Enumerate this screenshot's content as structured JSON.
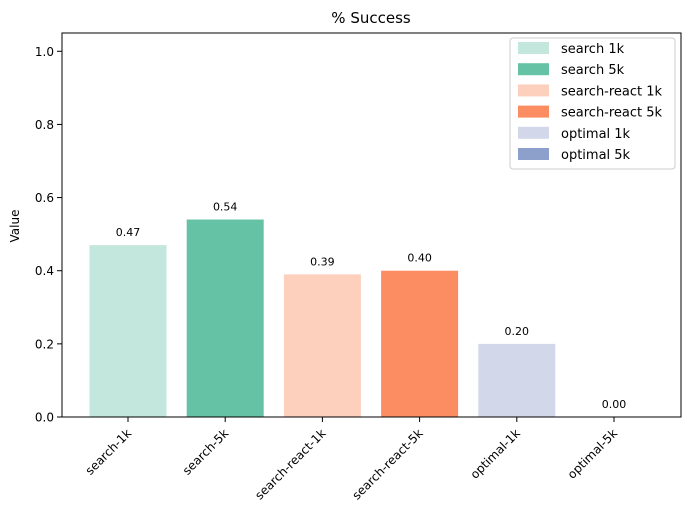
{
  "chart_data": {
    "type": "bar",
    "title": "% Success",
    "xlabel": "",
    "ylabel": "Value",
    "ylim": [
      0,
      1.05
    ],
    "yticks": [
      0.0,
      0.2,
      0.4,
      0.6,
      0.8,
      1.0
    ],
    "ytick_labels": [
      "0.0",
      "0.2",
      "0.4",
      "0.6",
      "0.8",
      "1.0"
    ],
    "categories": [
      "search-1k",
      "search-5k",
      "search-react-1k",
      "search-react-5k",
      "optimal-1k",
      "optimal-5k"
    ],
    "values": [
      0.47,
      0.54,
      0.39,
      0.4,
      0.2,
      0.0
    ],
    "value_labels": [
      "0.47",
      "0.54",
      "0.39",
      "0.40",
      "0.20",
      "0.00"
    ],
    "colors": [
      "#c4e7dd",
      "#66c2a5",
      "#fdd0be",
      "#fc8d62",
      "#d2d8ea",
      "#8da0cb"
    ],
    "grid": false,
    "legend": {
      "placement": "top-right",
      "entries": [
        {
          "label": "search 1k",
          "color": "#c4e7dd"
        },
        {
          "label": "search 5k",
          "color": "#66c2a5"
        },
        {
          "label": "search-react 1k",
          "color": "#fdd0be"
        },
        {
          "label": "search-react 5k",
          "color": "#fc8d62"
        },
        {
          "label": "optimal 1k",
          "color": "#d2d8ea"
        },
        {
          "label": "optimal 5k",
          "color": "#8da0cb"
        }
      ]
    }
  }
}
